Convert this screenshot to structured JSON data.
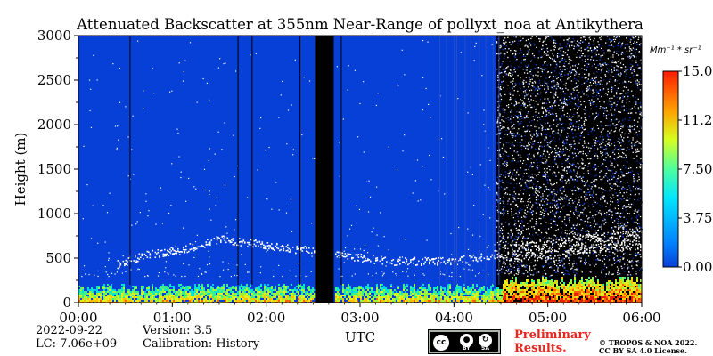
{
  "chart_data": {
    "type": "heatmap",
    "title": "Attenuated Backscatter at 355nm Near-Range of pollyxt_noa at Antikythera",
    "ylabel": "Height (m)",
    "xlabel": "UTC",
    "x_ticks": [
      "00:00",
      "01:00",
      "02:00",
      "03:00",
      "04:00",
      "05:00",
      "06:00"
    ],
    "x_range_hours": [
      0,
      6
    ],
    "y_ticks": [
      0,
      500,
      1000,
      1500,
      2000,
      2500,
      3000
    ],
    "ylim": [
      0,
      3000
    ],
    "colorbar": {
      "unit_label": "Mm⁻¹ * sr⁻¹",
      "ticks": [
        "15.00",
        "11.25",
        "7.50",
        "3.75",
        "0.00"
      ],
      "range": [
        0,
        15
      ],
      "colormap": "jet"
    },
    "features": {
      "data_gaps_hours": [
        [
          2.52,
          2.72
        ]
      ],
      "aerosol_layer": [
        {
          "time_h": 0.4,
          "height_m": 430
        },
        {
          "time_h": 0.7,
          "height_m": 540
        },
        {
          "time_h": 1.1,
          "height_m": 600
        },
        {
          "time_h": 1.5,
          "height_m": 720
        },
        {
          "time_h": 3.3,
          "height_m": 470
        },
        {
          "time_h": 4.0,
          "height_m": 470
        },
        {
          "time_h": 4.5,
          "height_m": 560
        },
        {
          "time_h": 5.0,
          "height_m": 600
        },
        {
          "time_h": 5.5,
          "height_m": 680
        },
        {
          "time_h": 6.0,
          "height_m": 720
        }
      ],
      "noisy_from_hour": 4.45
    }
  },
  "footer": {
    "date": "2022-09-22",
    "lc": "LC: 7.06e+09",
    "version": "Version: 3.5",
    "calibration": "Calibration: History",
    "preliminary": "Preliminary",
    "results": "Results.",
    "copyright_line1": "© TROPOS & NOA 2022.",
    "copyright_line2": "CC BY SA 4.0 License."
  },
  "license_badge": {
    "cc": "cc",
    "by": "BY",
    "sa": "SA",
    "icon": "creative-commons-icon"
  }
}
